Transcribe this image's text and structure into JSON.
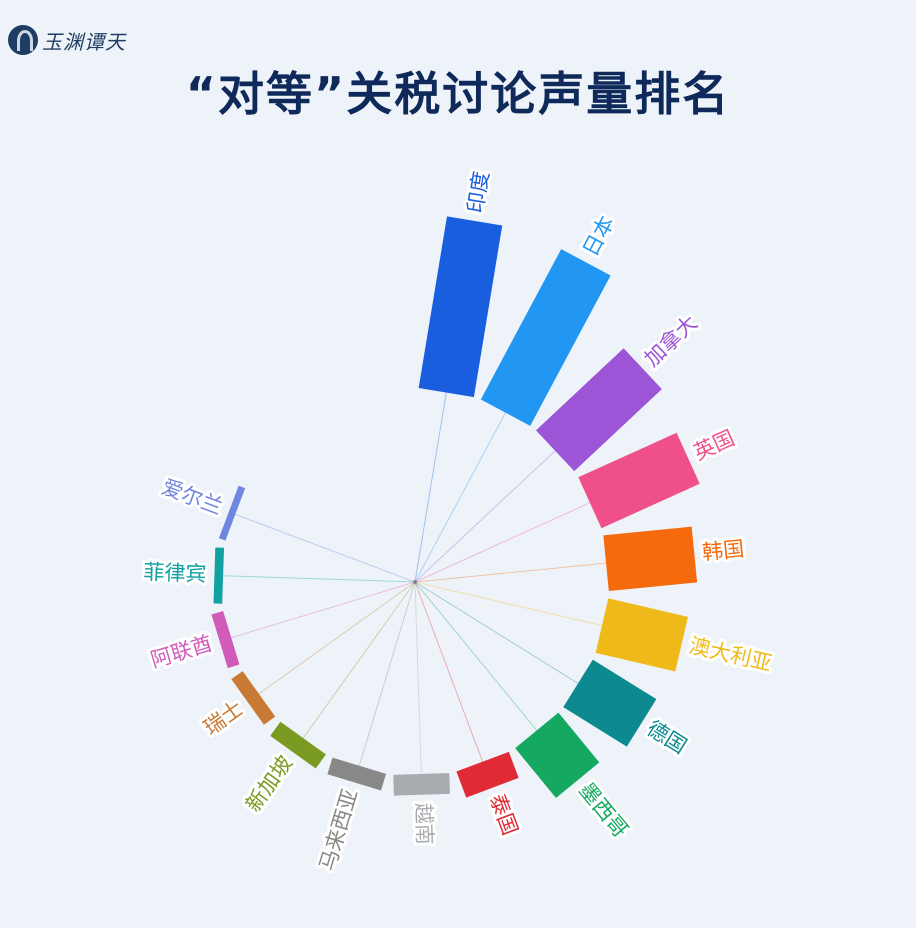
{
  "logo": {
    "text": "玉渊谭天"
  },
  "chart_data": {
    "type": "bar",
    "layout": "radial",
    "title": "“对等”关税讨论声量排名",
    "categories": [
      "印度",
      "日本",
      "加拿大",
      "英国",
      "韩国",
      "澳大利亚",
      "德国",
      "墨西哥",
      "泰国",
      "越南",
      "马来西亚",
      "新加坡",
      "瑞士",
      "阿联酋",
      "菲律宾",
      "爱尔兰"
    ],
    "values": [
      100,
      98,
      69,
      62,
      51,
      47,
      43,
      37,
      16,
      12,
      10,
      10,
      8,
      7,
      5,
      4
    ],
    "colors": [
      "#1a5ee0",
      "#2196f3",
      "#9b55d6",
      "#f0508a",
      "#f56a0c",
      "#f0b91a",
      "#0d8a8f",
      "#14a860",
      "#e02a35",
      "#a9acaf",
      "#888888",
      "#7a9a22",
      "#c87a35",
      "#d05bb8",
      "#12a0a0",
      "#6f86e0"
    ],
    "grid": false,
    "legend": "none"
  }
}
